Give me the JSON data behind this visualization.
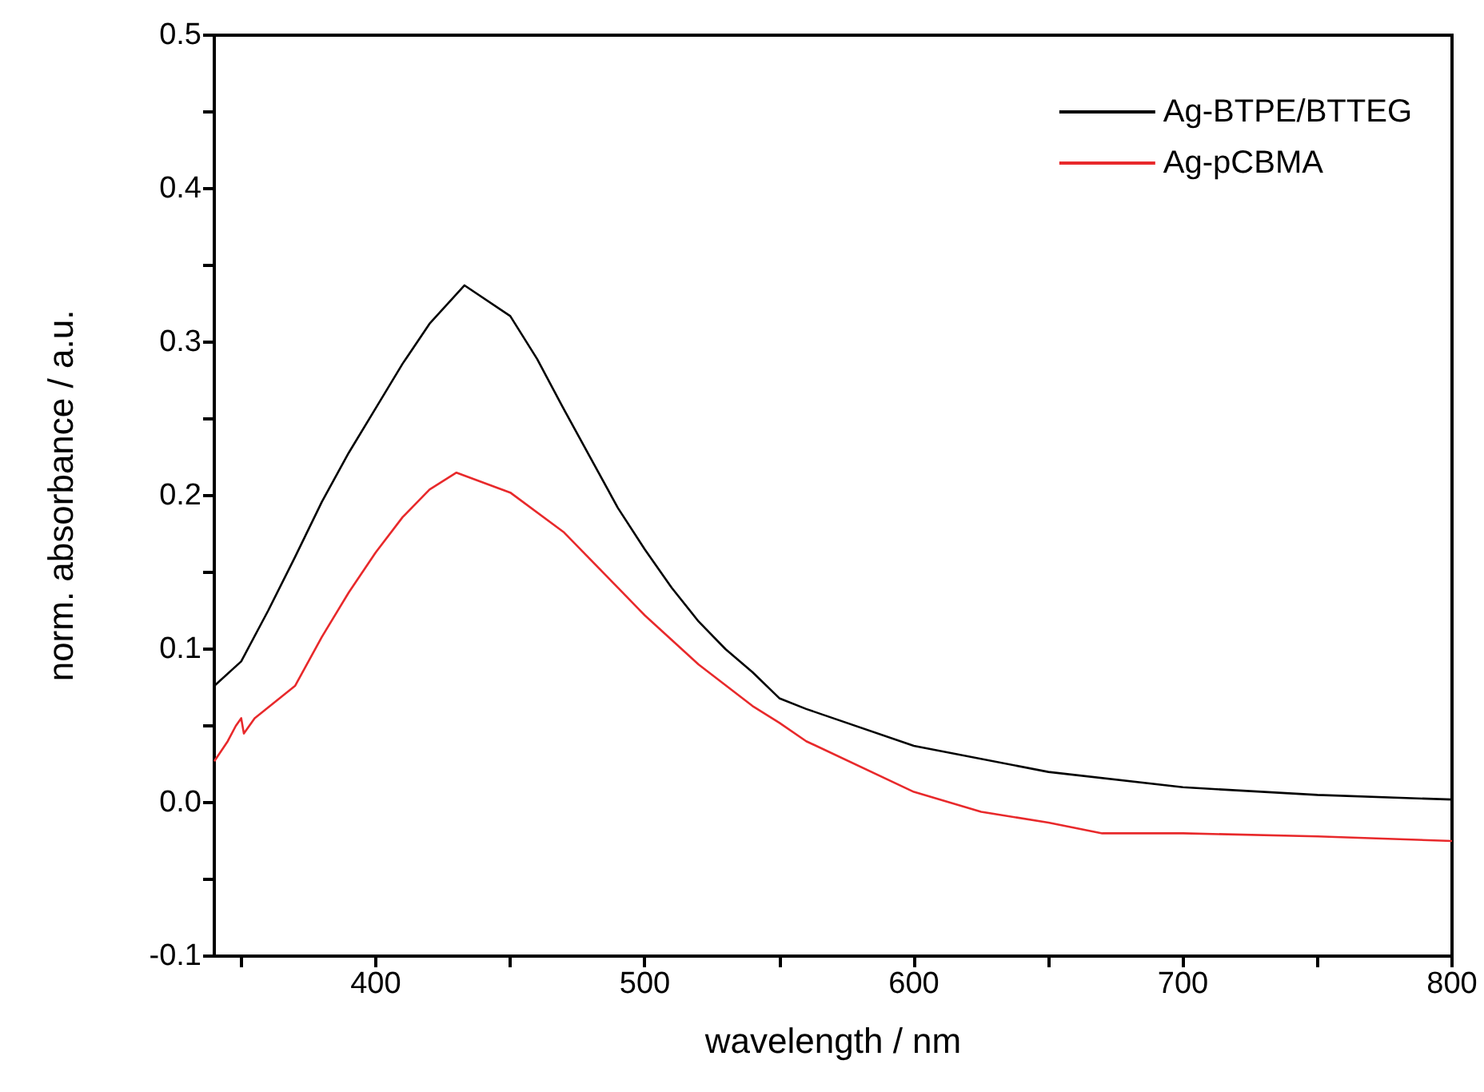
{
  "chart_data": {
    "type": "line",
    "xlabel": "wavelength / nm",
    "ylabel": "norm. absorbance / a.u.",
    "xlim": [
      340,
      800
    ],
    "ylim": [
      -0.1,
      0.5
    ],
    "xticks": [
      {
        "value": 350,
        "label": null
      },
      400,
      {
        "value": 450,
        "label": null
      },
      500,
      {
        "value": 550,
        "label": null
      },
      600,
      {
        "value": 650,
        "label": null
      },
      700,
      {
        "value": 750,
        "label": null
      },
      800
    ],
    "yticks": [
      {
        "value": -0.1,
        "label": "-0.1"
      },
      {
        "value": -0.05,
        "label": null
      },
      {
        "value": 0,
        "label": "0.0"
      },
      {
        "value": 0.05,
        "label": null
      },
      0.1,
      {
        "value": 0.15,
        "label": null
      },
      0.2,
      {
        "value": 0.25,
        "label": null
      },
      0.3,
      {
        "value": 0.35,
        "label": null
      },
      0.4,
      {
        "value": 0.45,
        "label": null
      },
      0.5
    ],
    "grid": false,
    "legend": "top right",
    "marker": "none",
    "line_style": "solid",
    "series": [
      {
        "name": "Ag-BTPE/BTTEG",
        "color": "#000000",
        "x": [
          340,
          350,
          360,
          370,
          380,
          390,
          400,
          410,
          420,
          433,
          450,
          460,
          470,
          480,
          490,
          500,
          510,
          520,
          530,
          540,
          550,
          560,
          600,
          650,
          700,
          750,
          800
        ],
        "values": [
          0.076,
          0.092,
          0.125,
          0.16,
          0.196,
          0.228,
          0.257,
          0.286,
          0.312,
          0.337,
          0.317,
          0.289,
          0.256,
          0.224,
          0.192,
          0.165,
          0.14,
          0.118,
          0.1,
          0.085,
          0.068,
          0.061,
          0.037,
          0.02,
          0.01,
          0.005,
          0.002
        ]
      },
      {
        "name": "Ag-pCBMA",
        "color": "#e8292b",
        "x": [
          340,
          345,
          348,
          350,
          351,
          355,
          360,
          370,
          380,
          390,
          400,
          410,
          420,
          430,
          450,
          470,
          490,
          500,
          520,
          540,
          550,
          560,
          600,
          625,
          650,
          670,
          700,
          750,
          800
        ],
        "values": [
          0.027,
          0.04,
          0.05,
          0.055,
          0.045,
          0.055,
          0.062,
          0.076,
          0.108,
          0.137,
          0.163,
          0.186,
          0.204,
          0.215,
          0.202,
          0.176,
          0.14,
          0.122,
          0.09,
          0.063,
          0.052,
          0.04,
          0.007,
          -0.006,
          -0.013,
          -0.02,
          -0.02,
          -0.022,
          -0.025
        ]
      }
    ]
  }
}
